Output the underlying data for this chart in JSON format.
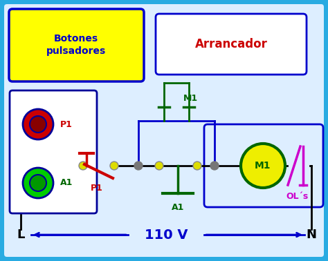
{
  "bg_color": "#29ABE2",
  "inner_bg": "#DDEEFF",
  "title_text": "110 V",
  "title_color": "#0000CC",
  "L_label": "L",
  "N_label": "N",
  "label_color": "#000000",
  "P1_color": "#CC0000",
  "A1_color": "#006600",
  "M1_color": "#006600",
  "OL_color": "#CC00CC",
  "wire_color": "#000000",
  "blue_wire": "#0000CC",
  "node_color": "#DDDD00",
  "motor_fill": "#EEEE00",
  "motor_stroke": "#006600",
  "green_btn_fill": "#00CC00",
  "red_btn_fill": "#CC0000",
  "btn_border": "#000099",
  "box_fill": "#FFFF00",
  "box_border": "#0000CC",
  "arr_label": "Arrancador",
  "arr_color": "#CC0000",
  "bot_label": "Botones\npulsadores",
  "bot_color": "#0000CC",
  "white": "#FFFFFF"
}
